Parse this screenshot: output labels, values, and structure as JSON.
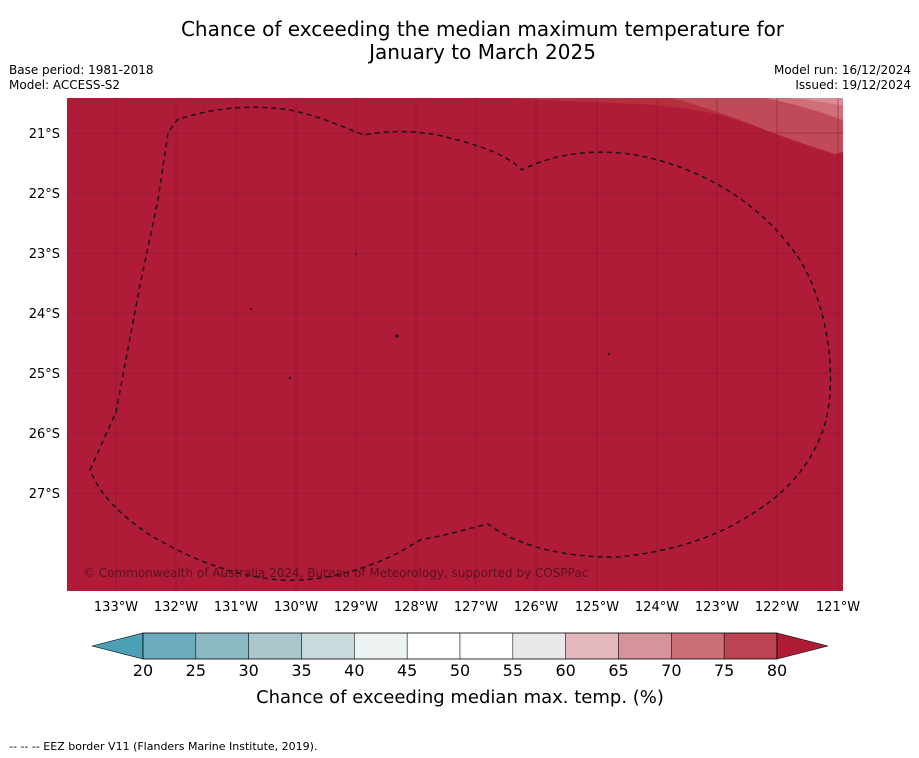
{
  "header": {
    "title_line1": "Chance of exceeding the median maximum temperature for",
    "title_line2": "January to March 2025",
    "base_period": "Base period: 1981-2018",
    "model": "Model: ACCESS-S2",
    "model_run": "Model run: 16/12/2024",
    "issued": "Issued: 19/12/2024"
  },
  "map": {
    "lon_ticks": [
      "133°W",
      "132°W",
      "131°W",
      "130°W",
      "129°W",
      "128°W",
      "127°W",
      "126°W",
      "125°W",
      "124°W",
      "123°W",
      "122°W",
      "121°W"
    ],
    "lat_ticks": [
      "21°S",
      "22°S",
      "23°S",
      "24°S",
      "25°S",
      "26°S",
      "27°S"
    ],
    "fill_color": "#b01c38",
    "copyright": "© Commonwealth of Australia 2024, Bureau of Meteorology, supported by COSPPac"
  },
  "colorbar": {
    "tick_labels": [
      "20",
      "25",
      "30",
      "35",
      "40",
      "45",
      "50",
      "55",
      "60",
      "65",
      "70",
      "75",
      "80"
    ],
    "colors": [
      "#6cadbd",
      "#8cbac5",
      "#a9c7cc",
      "#c9dadd",
      "#edf2f3",
      "#ffffff",
      "#ffffff",
      "#e8e8e8",
      "#e2b8bd",
      "#d6939a",
      "#cb6e78",
      "#bd4352"
    ],
    "under_color": "#4aa0b4",
    "over_color": "#b01c38",
    "label": "Chance of exceeding median max. temp. (%)"
  },
  "legend": {
    "eez_text": "--  --  -- EEZ border V11 (Flanders Marine Institute, 2019)."
  }
}
